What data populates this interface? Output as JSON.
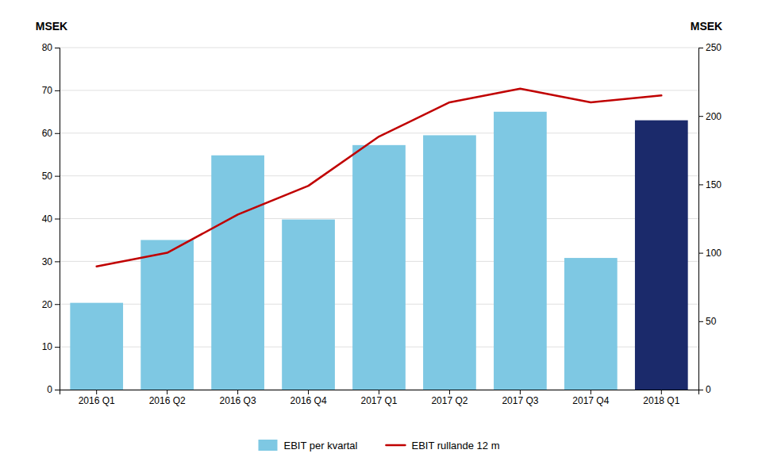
{
  "chart_data": {
    "type": "bar",
    "categories": [
      "2016 Q1",
      "2016 Q2",
      "2016 Q3",
      "2016 Q4",
      "2017 Q1",
      "2017 Q2",
      "2017 Q3",
      "2017 Q4",
      "2018 Q1"
    ],
    "series": [
      {
        "name": "EBIT per kvartal",
        "type": "bar",
        "color": "#7EC8E3",
        "colors": [
          "#7EC8E3",
          "#7EC8E3",
          "#7EC8E3",
          "#7EC8E3",
          "#7EC8E3",
          "#7EC8E3",
          "#7EC8E3",
          "#7EC8E3",
          "#1B2A6B"
        ],
        "values": [
          20.3,
          35.0,
          54.8,
          39.8,
          57.2,
          59.5,
          65.0,
          30.8,
          63.0
        ]
      },
      {
        "name": "EBIT rullande 12 m",
        "type": "line",
        "axis": "y2",
        "color": "#C00000",
        "values": [
          90,
          100,
          128,
          149,
          185,
          210,
          220,
          210,
          215
        ]
      }
    ],
    "ylabel": "MSEK",
    "y2label": "MSEK",
    "ylim": [
      0,
      80
    ],
    "yticks": [
      0,
      10,
      20,
      30,
      40,
      50,
      60,
      70,
      80
    ],
    "y2lim": [
      0,
      250
    ],
    "y2ticks": [
      0,
      50,
      100,
      150,
      200,
      250
    ],
    "grid": true,
    "legend": "bottom"
  }
}
